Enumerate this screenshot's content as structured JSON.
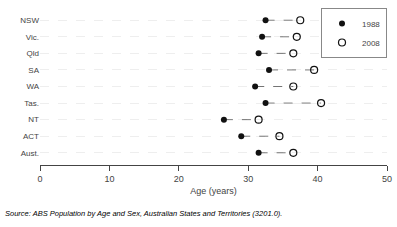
{
  "chart_data": {
    "type": "dumbbell",
    "categories": [
      "NSW",
      "Vic.",
      "Qld",
      "SA",
      "WA",
      "Tas.",
      "NT",
      "ACT",
      "Aust."
    ],
    "series": [
      {
        "name": "1988",
        "color": "#111111",
        "marker": "circle",
        "values": [
          32.5,
          32.0,
          31.5,
          33.0,
          31.0,
          32.5,
          26.5,
          29.0,
          31.5
        ]
      },
      {
        "name": "2008",
        "color": "#111111",
        "marker": "circle-open",
        "values": [
          37.5,
          37.0,
          36.5,
          39.5,
          36.5,
          40.5,
          31.5,
          34.5,
          36.5
        ]
      }
    ],
    "line_style": "dashed",
    "xlabel": "Age (years)",
    "annotations": [
      "Source: ABS Population by Age and Sex, Australian States and Territories (3201.0)."
    ],
    "xlim": [
      0,
      50
    ],
    "xticks": [
      0,
      10,
      20,
      30,
      40,
      50
    ],
    "grid": true,
    "legend": "upper right",
    "background_color": "#ffffff"
  }
}
